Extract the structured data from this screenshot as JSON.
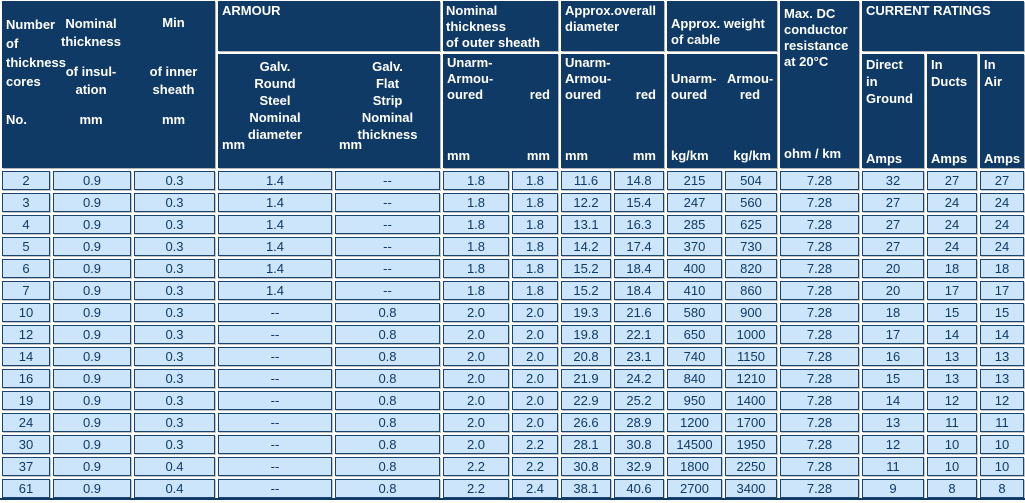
{
  "colors": {
    "header_bg": "#103a66",
    "header_text": "#ffffff",
    "row_bg": "#cde5fa",
    "row_text": "#0f3a66",
    "cell_border": "#1a4470",
    "gap": "#ffffff"
  },
  "table": {
    "header": {
      "cores": {
        "label": "Number\nof\nthickness\ncores",
        "unit": "No."
      },
      "insulation": {
        "label": "Nominal\nthickness",
        "label2": "of insul-\nation",
        "unit": "mm"
      },
      "inner_sheath": {
        "label": "Min",
        "label2": "of inner\nsheath",
        "unit": "mm"
      },
      "armour": {
        "title": "ARMOUR",
        "round_steel": {
          "label": "Galv.\nRound\nSteel\nNominal\ndiameter",
          "unit": "mm"
        },
        "flat_strip": {
          "label": "Galv.\nFlat\nStrip\nNominal\nthickness",
          "unit": "mm"
        }
      },
      "outer_sheath": {
        "title": "Nominal thickness\nof outer sheath",
        "left": "Unarm-\nArmou-\noured",
        "right": "red",
        "left_unit": "mm",
        "right_unit": "mm"
      },
      "overall_diameter": {
        "title": "Approx.overall\ndiameter",
        "left": "Unarm-\nArmou-\noured",
        "right": "red",
        "left_unit": "mm",
        "right_unit": "mm"
      },
      "weight": {
        "title": "Approx. weight\nof cable",
        "left": "Unarm-\noured",
        "right": "Armou-\nred",
        "left_unit": "kg/km",
        "right_unit": "kg/km"
      },
      "resistance": {
        "title": "Max. DC\nconductor\nresistance\nat 20°C",
        "unit": "ohm / km"
      },
      "current_ratings": {
        "title": "CURRENT RATINGS",
        "direct_ground": {
          "label": "Direct\nin\nGround",
          "unit": "Amps"
        },
        "in_ducts": {
          "label": "In\nDucts",
          "unit": "Amps"
        },
        "in_air": {
          "label": "In\nAir",
          "unit": "Amps"
        }
      }
    },
    "columns": [
      "cores",
      "insulation",
      "inner-sheath",
      "galv-round-steel",
      "galv-flat-strip",
      "sheath-unarmoured",
      "sheath-armoured",
      "dia-unarmoured",
      "dia-armoured",
      "wt-unarmoured",
      "wt-armoured",
      "resistance",
      "direct-ground",
      "in-ducts",
      "in-air"
    ],
    "rows": [
      [
        "2",
        "0.9",
        "0.3",
        "1.4",
        "--",
        "1.8",
        "1.8",
        "11.6",
        "14.8",
        "215",
        "504",
        "7.28",
        "32",
        "27",
        "27"
      ],
      [
        "3",
        "0.9",
        "0.3",
        "1.4",
        "--",
        "1.8",
        "1.8",
        "12.2",
        "15.4",
        "247",
        "560",
        "7.28",
        "27",
        "24",
        "24"
      ],
      [
        "4",
        "0.9",
        "0.3",
        "1.4",
        "--",
        "1.8",
        "1.8",
        "13.1",
        "16.3",
        "285",
        "625",
        "7.28",
        "27",
        "24",
        "24"
      ],
      [
        "5",
        "0.9",
        "0.3",
        "1.4",
        "--",
        "1.8",
        "1.8",
        "14.2",
        "17.4",
        "370",
        "730",
        "7.28",
        "27",
        "24",
        "24"
      ],
      [
        "6",
        "0.9",
        "0.3",
        "1.4",
        "--",
        "1.8",
        "1.8",
        "15.2",
        "18.4",
        "400",
        "820",
        "7.28",
        "20",
        "18",
        "18"
      ],
      [
        "7",
        "0.9",
        "0.3",
        "1.4",
        "--",
        "1.8",
        "1.8",
        "15.2",
        "18.4",
        "410",
        "860",
        "7.28",
        "20",
        "17",
        "17"
      ],
      [
        "10",
        "0.9",
        "0.3",
        "--",
        "0.8",
        "2.0",
        "2.0",
        "19.3",
        "21.6",
        "580",
        "900",
        "7.28",
        "18",
        "15",
        "15"
      ],
      [
        "12",
        "0.9",
        "0.3",
        "--",
        "0.8",
        "2.0",
        "2.0",
        "19.8",
        "22.1",
        "650",
        "1000",
        "7.28",
        "17",
        "14",
        "14"
      ],
      [
        "14",
        "0.9",
        "0.3",
        "--",
        "0.8",
        "2.0",
        "2.0",
        "20.8",
        "23.1",
        "740",
        "1150",
        "7.28",
        "16",
        "13",
        "13"
      ],
      [
        "16",
        "0.9",
        "0.3",
        "--",
        "0.8",
        "2.0",
        "2.0",
        "21.9",
        "24.2",
        "840",
        "1210",
        "7.28",
        "15",
        "13",
        "13"
      ],
      [
        "19",
        "0.9",
        "0.3",
        "--",
        "0.8",
        "2.0",
        "2.0",
        "22.9",
        "25.2",
        "950",
        "1400",
        "7.28",
        "14",
        "12",
        "12"
      ],
      [
        "24",
        "0.9",
        "0.3",
        "--",
        "0.8",
        "2.0",
        "2.0",
        "26.6",
        "28.9",
        "1200",
        "1700",
        "7.28",
        "13",
        "11",
        "11"
      ],
      [
        "30",
        "0.9",
        "0.3",
        "--",
        "0.8",
        "2.0",
        "2.2",
        "28.1",
        "30.8",
        "14500",
        "1950",
        "7.28",
        "12",
        "10",
        "10"
      ],
      [
        "37",
        "0.9",
        "0.4",
        "--",
        "0.8",
        "2.2",
        "2.2",
        "30.8",
        "32.9",
        "1800",
        "2250",
        "7.28",
        "11",
        "10",
        "10"
      ],
      [
        "61",
        "0.9",
        "0.4",
        "--",
        "0.8",
        "2.2",
        "2.4",
        "38.1",
        "40.6",
        "2700",
        "3400",
        "7.28",
        "9",
        "8",
        "8"
      ]
    ]
  }
}
